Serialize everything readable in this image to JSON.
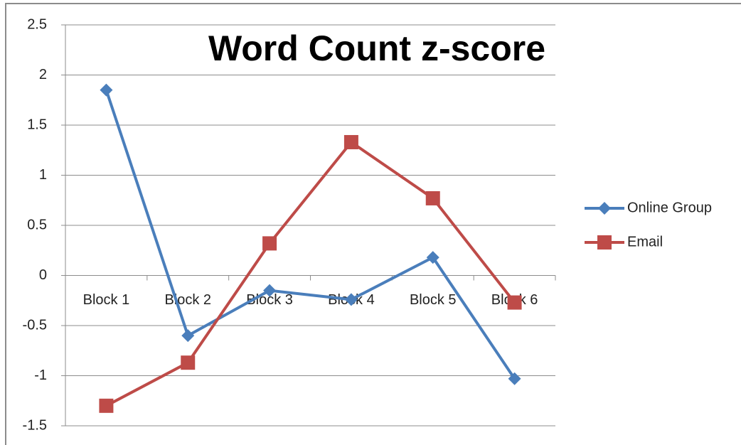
{
  "chart_data": {
    "type": "line",
    "title": "Word  Count z-score",
    "categories": [
      "Block 1",
      "Block 2",
      "Block 3",
      "Block 4",
      "Block 5",
      "Block 6"
    ],
    "series": [
      {
        "name": "Online Group",
        "color": "#4a7ebb",
        "marker": "diamond",
        "values": [
          1.85,
          -0.6,
          -0.15,
          -0.24,
          0.18,
          -1.03
        ]
      },
      {
        "name": "Email",
        "color": "#be4b48",
        "marker": "square",
        "values": [
          -1.3,
          -0.87,
          0.32,
          1.33,
          0.77,
          -0.27
        ]
      }
    ],
    "ylim": [
      -1.5,
      2.5
    ],
    "yticks": [
      2.5,
      2,
      1.5,
      1,
      0.5,
      0,
      -0.5,
      -1,
      -1.5
    ],
    "grid": true,
    "legend": "right"
  }
}
